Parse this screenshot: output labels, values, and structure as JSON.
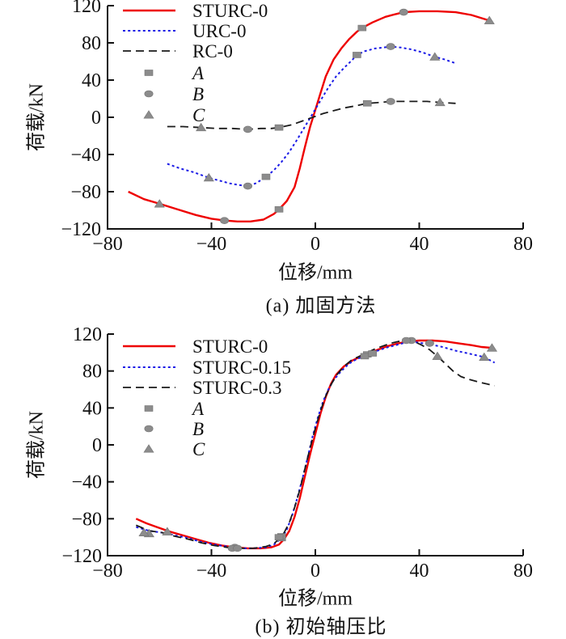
{
  "figure": {
    "background": "#ffffff",
    "text_color": "#111111",
    "marker_color": "#8c8c8c",
    "marker_edge_color": "#737373"
  },
  "chart_data": [
    {
      "panel": "a",
      "type": "line",
      "caption": "(a)  加固方法",
      "xlabel": "位移/mm",
      "ylabel": "荷载/kN",
      "xlim": [
        -80,
        80
      ],
      "ylim": [
        -120,
        120
      ],
      "xticks": [
        -80,
        -40,
        0,
        40,
        80
      ],
      "yticks": [
        120,
        80,
        40,
        0,
        -40,
        -80,
        -120
      ],
      "grid": false,
      "legend_position": "top-left-inside",
      "series": [
        {
          "name": "STURC-0",
          "color": "#ee0000",
          "dash": "solid",
          "width": 2.4,
          "points": [
            [
              -72,
              -80
            ],
            [
              -66,
              -88
            ],
            [
              -60,
              -93
            ],
            [
              -53,
              -99
            ],
            [
              -46,
              -105
            ],
            [
              -40,
              -109
            ],
            [
              -35,
              -111
            ],
            [
              -30,
              -112
            ],
            [
              -25,
              -112
            ],
            [
              -20,
              -110
            ],
            [
              -16,
              -104
            ],
            [
              -14,
              -99
            ],
            [
              -11,
              -90
            ],
            [
              -8,
              -75
            ],
            [
              -6,
              -55
            ],
            [
              -4,
              -32
            ],
            [
              -2,
              -10
            ],
            [
              0,
              8
            ],
            [
              2,
              26
            ],
            [
              4,
              44
            ],
            [
              7,
              62
            ],
            [
              10,
              74
            ],
            [
              13,
              84
            ],
            [
              16,
              92
            ],
            [
              18,
              96
            ],
            [
              22,
              102
            ],
            [
              27,
              108
            ],
            [
              31,
              111
            ],
            [
              34,
              113
            ],
            [
              40,
              114
            ],
            [
              47,
              114
            ],
            [
              54,
              113
            ],
            [
              60,
              110
            ],
            [
              67,
              104
            ]
          ]
        },
        {
          "name": "URC-0",
          "color": "#1a1ae6",
          "dash": "dotted",
          "width": 2.0,
          "points": [
            [
              -57,
              -50
            ],
            [
              -52,
              -55
            ],
            [
              -47,
              -59
            ],
            [
              -43,
              -63
            ],
            [
              -41,
              -65
            ],
            [
              -37,
              -68
            ],
            [
              -33,
              -71
            ],
            [
              -29,
              -73
            ],
            [
              -26,
              -74
            ],
            [
              -23,
              -71
            ],
            [
              -20,
              -66
            ],
            [
              -19,
              -64
            ],
            [
              -16,
              -57
            ],
            [
              -13,
              -48
            ],
            [
              -10,
              -37
            ],
            [
              -7,
              -24
            ],
            [
              -4,
              -10
            ],
            [
              -1,
              4
            ],
            [
              2,
              18
            ],
            [
              5,
              32
            ],
            [
              8,
              44
            ],
            [
              11,
              53
            ],
            [
              14,
              61
            ],
            [
              16,
              67
            ],
            [
              19,
              71
            ],
            [
              23,
              74
            ],
            [
              26,
              75
            ],
            [
              29,
              76
            ],
            [
              33,
              75
            ],
            [
              37,
              73
            ],
            [
              41,
              70
            ],
            [
              46,
              65
            ],
            [
              50,
              62
            ],
            [
              54,
              58
            ]
          ]
        },
        {
          "name": "RC-0",
          "color": "#1a1a1a",
          "dash": "dashed",
          "width": 1.8,
          "points": [
            [
              -57,
              -10
            ],
            [
              -51,
              -10
            ],
            [
              -44,
              -11
            ],
            [
              -38,
              -12
            ],
            [
              -32,
              -12
            ],
            [
              -26,
              -13
            ],
            [
              -21,
              -12
            ],
            [
              -17,
              -12
            ],
            [
              -14,
              -11
            ],
            [
              -9,
              -8
            ],
            [
              -5,
              -4
            ],
            [
              -1,
              0
            ],
            [
              3,
              4
            ],
            [
              7,
              7
            ],
            [
              11,
              10
            ],
            [
              15,
              12
            ],
            [
              20,
              15
            ],
            [
              25,
              16
            ],
            [
              29,
              17
            ],
            [
              34,
              17
            ],
            [
              39,
              17
            ],
            [
              43,
              17
            ],
            [
              48,
              16
            ],
            [
              54,
              15
            ]
          ]
        }
      ],
      "markers": [
        {
          "label": "A",
          "shape": "square",
          "points": [
            [
              -14,
              -99
            ],
            [
              18,
              96
            ],
            [
              -19,
              -64
            ],
            [
              16,
              67
            ],
            [
              -14,
              -11
            ],
            [
              20,
              15
            ]
          ]
        },
        {
          "label": "B",
          "shape": "circle",
          "points": [
            [
              -35,
              -111
            ],
            [
              34,
              113
            ],
            [
              -26,
              -74
            ],
            [
              29,
              76
            ],
            [
              -26,
              -13
            ],
            [
              29,
              17
            ]
          ]
        },
        {
          "label": "C",
          "shape": "triangle",
          "points": [
            [
              -60,
              -93
            ],
            [
              67,
              104
            ],
            [
              -41,
              -65
            ],
            [
              46,
              65
            ],
            [
              -44,
              -11
            ],
            [
              48,
              16
            ]
          ]
        }
      ]
    },
    {
      "panel": "b",
      "type": "line",
      "caption": "(b)  初始轴压比",
      "xlabel": "位移/mm",
      "ylabel": "荷载/kN",
      "xlim": [
        -80,
        80
      ],
      "ylim": [
        -120,
        120
      ],
      "xticks": [
        -80,
        -40,
        0,
        40,
        80
      ],
      "yticks": [
        120,
        80,
        40,
        0,
        -40,
        -80,
        -120
      ],
      "grid": false,
      "legend_position": "top-left-inside",
      "series": [
        {
          "name": "STURC-0",
          "color": "#ee0000",
          "dash": "solid",
          "width": 2.4,
          "points": [
            [
              -69,
              -80
            ],
            [
              -65,
              -85
            ],
            [
              -61,
              -89
            ],
            [
              -56,
              -94
            ],
            [
              -51,
              -98
            ],
            [
              -46,
              -102
            ],
            [
              -41,
              -106
            ],
            [
              -36,
              -109
            ],
            [
              -31,
              -111
            ],
            [
              -26,
              -112
            ],
            [
              -21,
              -112
            ],
            [
              -17,
              -111
            ],
            [
              -14,
              -108
            ],
            [
              -12,
              -102
            ],
            [
              -10,
              -93
            ],
            [
              -8,
              -78
            ],
            [
              -6,
              -58
            ],
            [
              -4,
              -34
            ],
            [
              -2,
              -10
            ],
            [
              0,
              12
            ],
            [
              2,
              34
            ],
            [
              4,
              52
            ],
            [
              6,
              66
            ],
            [
              8,
              76
            ],
            [
              11,
              85
            ],
            [
              14,
              91
            ],
            [
              17,
              95
            ],
            [
              20,
              98
            ],
            [
              24,
              103
            ],
            [
              28,
              107
            ],
            [
              32,
              110
            ],
            [
              36,
              112
            ],
            [
              40,
              113
            ],
            [
              45,
              113
            ],
            [
              50,
              112
            ],
            [
              55,
              110
            ],
            [
              60,
              108
            ],
            [
              64,
              106
            ],
            [
              68,
              105
            ]
          ]
        },
        {
          "name": "STURC-0.15",
          "color": "#1a1ae6",
          "dash": "dotted",
          "width": 2.0,
          "points": [
            [
              -69,
              -89
            ],
            [
              -64,
              -93
            ],
            [
              -59,
              -95
            ],
            [
              -54,
              -98
            ],
            [
              -49,
              -101
            ],
            [
              -44,
              -105
            ],
            [
              -39,
              -108
            ],
            [
              -34,
              -110
            ],
            [
              -29,
              -112
            ],
            [
              -24,
              -112
            ],
            [
              -19,
              -111
            ],
            [
              -16,
              -108
            ],
            [
              -13,
              -101
            ],
            [
              -11,
              -92
            ],
            [
              -9,
              -77
            ],
            [
              -7,
              -58
            ],
            [
              -5,
              -37
            ],
            [
              -3,
              -14
            ],
            [
              -1,
              10
            ],
            [
              1,
              30
            ],
            [
              3,
              47
            ],
            [
              5,
              60
            ],
            [
              7,
              70
            ],
            [
              10,
              80
            ],
            [
              13,
              88
            ],
            [
              16,
              93
            ],
            [
              19,
              96
            ],
            [
              23,
              101
            ],
            [
              27,
              105
            ],
            [
              31,
              108
            ],
            [
              35,
              111
            ],
            [
              39,
              111
            ],
            [
              44,
              109
            ],
            [
              49,
              106
            ],
            [
              54,
              102
            ],
            [
              59,
              99
            ],
            [
              65,
              95
            ],
            [
              69,
              89
            ]
          ]
        },
        {
          "name": "STURC-0.3",
          "color": "#1a1a1a",
          "dash": "dashed",
          "width": 1.8,
          "points": [
            [
              -69,
              -87
            ],
            [
              -64,
              -93
            ],
            [
              -59,
              -95
            ],
            [
              -54,
              -99
            ],
            [
              -49,
              -102
            ],
            [
              -44,
              -106
            ],
            [
              -39,
              -109
            ],
            [
              -34,
              -111
            ],
            [
              -29,
              -112
            ],
            [
              -24,
              -112
            ],
            [
              -19,
              -110
            ],
            [
              -16,
              -107
            ],
            [
              -14,
              -102
            ],
            [
              -12,
              -95
            ],
            [
              -10,
              -84
            ],
            [
              -8,
              -68
            ],
            [
              -6,
              -49
            ],
            [
              -4,
              -26
            ],
            [
              -2,
              -3
            ],
            [
              0,
              18
            ],
            [
              2,
              37
            ],
            [
              4,
              53
            ],
            [
              6,
              65
            ],
            [
              8,
              75
            ],
            [
              11,
              85
            ],
            [
              14,
              92
            ],
            [
              17,
              96
            ],
            [
              20,
              100
            ],
            [
              23,
              104
            ],
            [
              26,
              107
            ],
            [
              29,
              110
            ],
            [
              32,
              112
            ],
            [
              35,
              113
            ],
            [
              38,
              112
            ],
            [
              41,
              108
            ],
            [
              44,
              103
            ],
            [
              47,
              96
            ],
            [
              50,
              88
            ],
            [
              53,
              80
            ],
            [
              56,
              74
            ],
            [
              59,
              71
            ],
            [
              63,
              68
            ],
            [
              66,
              66
            ],
            [
              69,
              64
            ]
          ]
        }
      ],
      "markers": [
        {
          "label": "A",
          "shape": "square",
          "points": [
            [
              -13,
              -101
            ],
            [
              20,
              98
            ],
            [
              -13,
              -99
            ],
            [
              19,
              96
            ],
            [
              -14,
              -100
            ],
            [
              22,
              99
            ]
          ]
        },
        {
          "label": "B",
          "shape": "circle",
          "points": [
            [
              -31,
              -111
            ],
            [
              37,
              113
            ],
            [
              -32,
              -112
            ],
            [
              44,
              110
            ],
            [
              -30,
              -112
            ],
            [
              35,
              113
            ]
          ]
        },
        {
          "label": "C",
          "shape": "triangle",
          "points": [
            [
              -64,
              -96
            ],
            [
              68,
              105
            ],
            [
              -66,
              -95
            ],
            [
              65,
              95
            ],
            [
              -57,
              -94
            ],
            [
              47,
              96
            ]
          ]
        }
      ]
    }
  ]
}
